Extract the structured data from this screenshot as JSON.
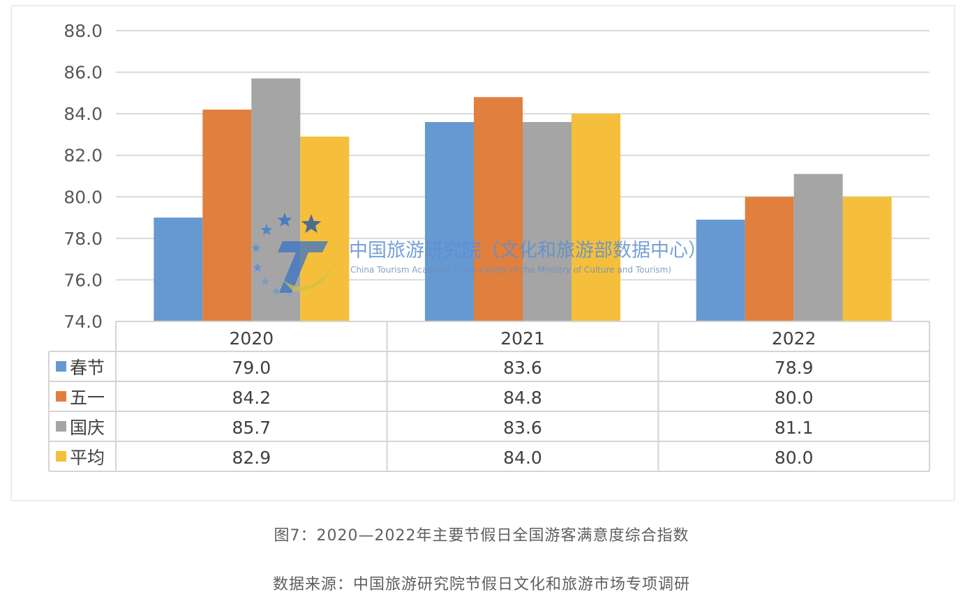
{
  "chart_data": {
    "type": "bar",
    "categories": [
      "2020",
      "2021",
      "2022"
    ],
    "series": [
      {
        "name": "春节",
        "values": [
          79.0,
          83.6,
          78.9
        ],
        "color": "#6699d2",
        "display": [
          "79.0",
          "83.6",
          "78.9"
        ]
      },
      {
        "name": "五一",
        "values": [
          84.2,
          84.8,
          80.0
        ],
        "color": "#e07f3e",
        "display": [
          "84.2",
          "84.8",
          "80.0"
        ]
      },
      {
        "name": "国庆",
        "values": [
          85.7,
          83.6,
          81.1
        ],
        "color": "#a5a5a5",
        "display": [
          "85.7",
          "83.6",
          "81.1"
        ]
      },
      {
        "name": "平均",
        "values": [
          82.9,
          84.0,
          80.0
        ],
        "color": "#f5bf3c",
        "display": [
          "82.9",
          "84.0",
          "80.0"
        ]
      }
    ],
    "yticks": [
      "74.0",
      "76.0",
      "78.0",
      "80.0",
      "82.0",
      "84.0",
      "86.0",
      "88.0"
    ],
    "ylim": [
      74,
      88
    ],
    "grid": true,
    "legend": "data-table",
    "xlabel": "",
    "ylabel": ""
  },
  "watermark": {
    "name_cn": "中国旅游研究院（文化和旅游部数据中心）",
    "name_en": "China Tourism Academy (Data Center of the Ministry of Culture and Tourism)",
    "logo_letter": "T",
    "logo_icon": "star-ring-logo-icon"
  },
  "caption": {
    "title": "图7：2020—2022年主要节假日全国游客满意度综合指数",
    "source": "数据来源：中国旅游研究院节假日文化和旅游市场专项调研"
  }
}
